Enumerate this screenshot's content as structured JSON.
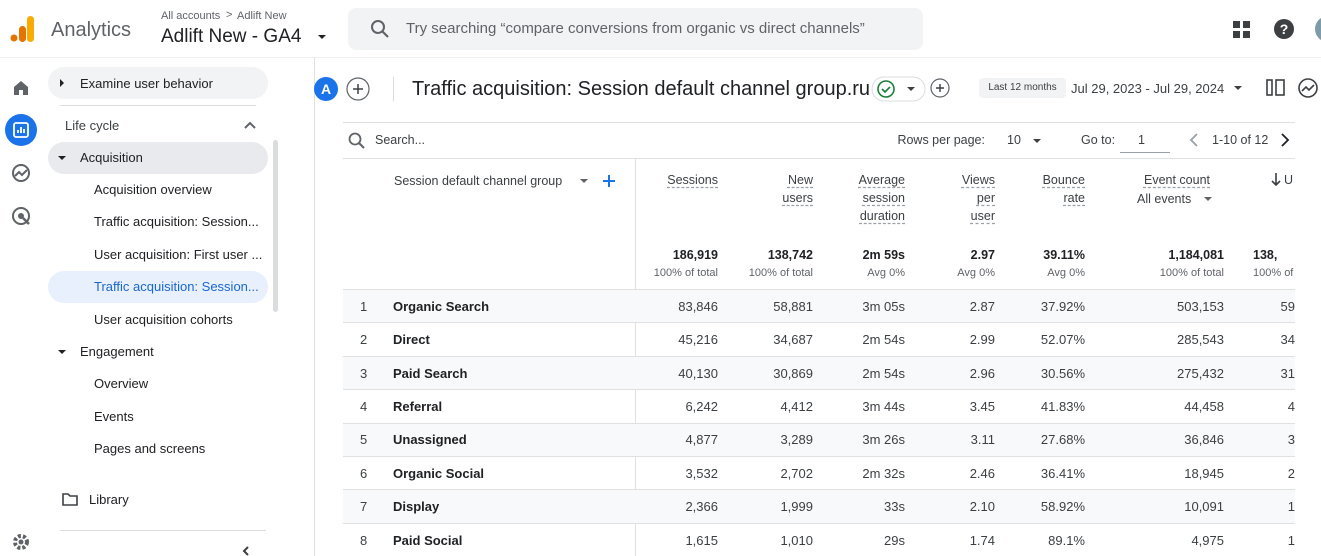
{
  "header": {
    "app_name": "Analytics",
    "breadcrumb": [
      "All accounts",
      "Adlift New"
    ],
    "property": "Adlift New - GA4",
    "search_placeholder": "Try searching “compare conversions from organic vs direct channels”"
  },
  "sidebar": {
    "top_item": "Examine user behavior",
    "section": "Life cycle",
    "groups": [
      {
        "label": "Acquisition",
        "items": [
          "Acquisition overview",
          "Traffic acquisition: Session...",
          "User acquisition: First user ...",
          "Traffic acquisition: Session...",
          "User acquisition cohorts"
        ]
      },
      {
        "label": "Engagement",
        "items": [
          "Overview",
          "Events",
          "Pages and screens"
        ]
      }
    ],
    "library": "Library"
  },
  "report": {
    "avatar": "A",
    "title": "Traffic acquisition: Session default channel group.ru",
    "date_label": "Last 12 months",
    "date_range": "Jul 29, 2023 - Jul 29, 2024"
  },
  "table": {
    "search_placeholder": "Search...",
    "rows_per_page_label": "Rows per page:",
    "rows_per_page": "10",
    "goto_label": "Go to:",
    "goto": "1",
    "page_range": "1-10 of 12",
    "dimension": "Session default channel group",
    "columns": [
      {
        "label": "Sessions",
        "total": "186,919",
        "total_note": "100% of total"
      },
      {
        "label": "New users",
        "total": "138,742",
        "total_note": "100% of total"
      },
      {
        "label": "Average session duration",
        "total": "2m 59s",
        "total_note": "Avg 0%"
      },
      {
        "label": "Views per user",
        "total": "2.97",
        "total_note": "Avg 0%"
      },
      {
        "label": "Bounce rate",
        "total": "39.11%",
        "total_note": "Avg 0%"
      },
      {
        "label": "Event count",
        "sublabel": "All events",
        "total": "1,184,081",
        "total_note": "100% of total"
      },
      {
        "label": "U",
        "total": "138,",
        "total_note": "100% of"
      }
    ],
    "rows": [
      {
        "index": 1,
        "name": "Organic Search",
        "values": [
          "83,846",
          "58,881",
          "3m 05s",
          "2.87",
          "37.92%",
          "503,153",
          "59"
        ]
      },
      {
        "index": 2,
        "name": "Direct",
        "values": [
          "45,216",
          "34,687",
          "2m 54s",
          "2.99",
          "52.07%",
          "285,543",
          "34"
        ]
      },
      {
        "index": 3,
        "name": "Paid Search",
        "values": [
          "40,130",
          "30,869",
          "2m 54s",
          "2.96",
          "30.56%",
          "275,432",
          "31"
        ]
      },
      {
        "index": 4,
        "name": "Referral",
        "values": [
          "6,242",
          "4,412",
          "3m 44s",
          "3.45",
          "41.83%",
          "44,458",
          "4"
        ]
      },
      {
        "index": 5,
        "name": "Unassigned",
        "values": [
          "4,877",
          "3,289",
          "3m 26s",
          "3.11",
          "27.68%",
          "36,846",
          "3"
        ]
      },
      {
        "index": 6,
        "name": "Organic Social",
        "values": [
          "3,532",
          "2,702",
          "2m 32s",
          "2.46",
          "36.41%",
          "18,945",
          "2"
        ]
      },
      {
        "index": 7,
        "name": "Display",
        "values": [
          "2,366",
          "1,999",
          "33s",
          "2.10",
          "58.92%",
          "10,091",
          "1"
        ]
      },
      {
        "index": 8,
        "name": "Paid Social",
        "values": [
          "1,615",
          "1,010",
          "29s",
          "1.74",
          "89.1%",
          "4,975",
          "1"
        ]
      }
    ]
  }
}
